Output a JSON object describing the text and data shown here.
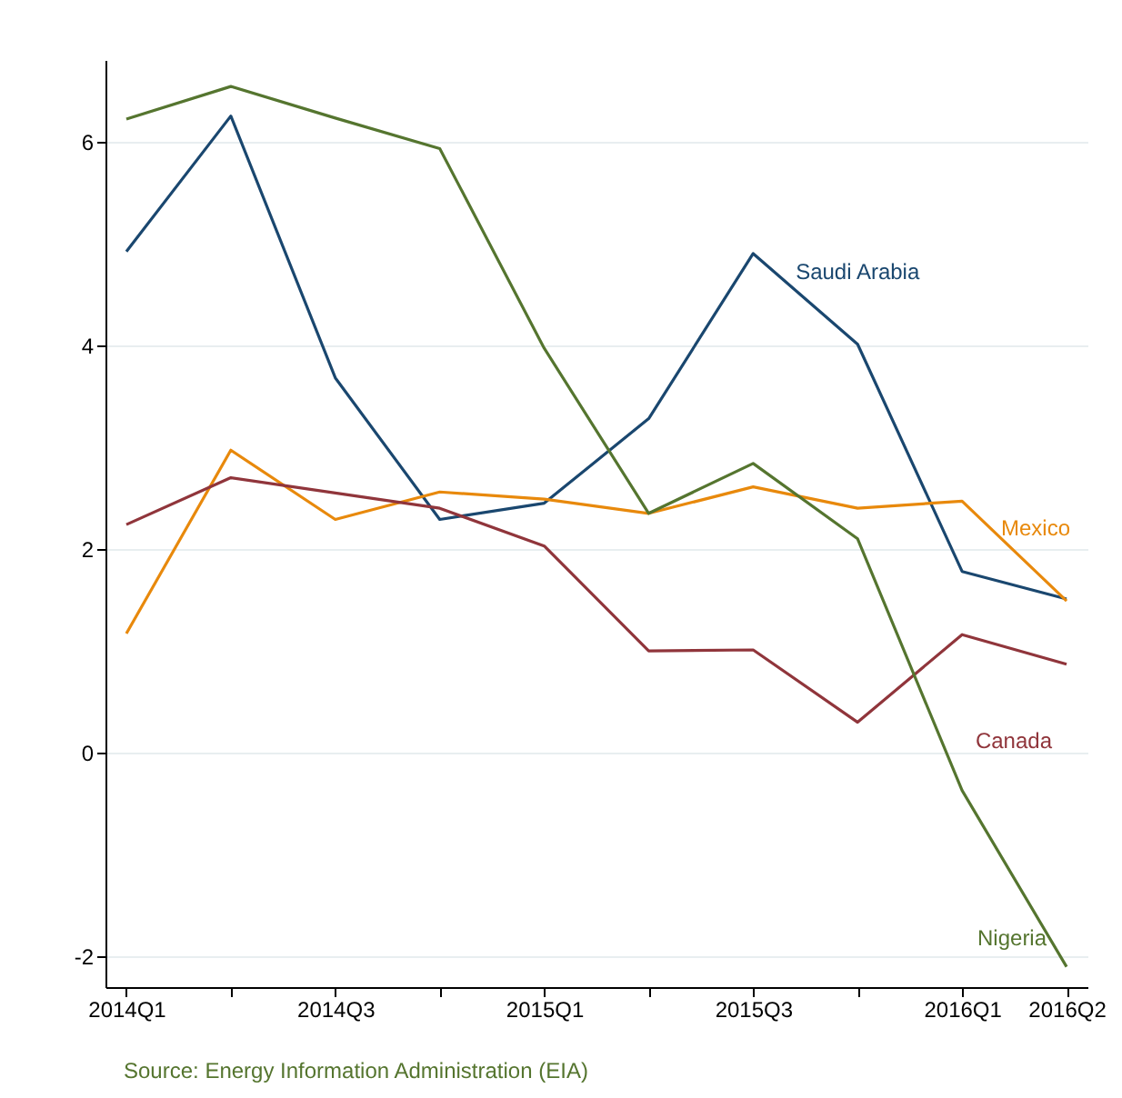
{
  "chart_data": {
    "type": "line",
    "categories": [
      "2014Q1",
      null,
      "2014Q3",
      null,
      "2015Q1",
      null,
      "2015Q3",
      null,
      "2016Q1",
      "2016Q2"
    ],
    "series": [
      {
        "name": "Saudi Arabia",
        "color": "#1a476f",
        "values": [
          4.92,
          6.25,
          3.68,
          2.29,
          2.45,
          3.28,
          4.9,
          4.01,
          1.78,
          1.51
        ]
      },
      {
        "name": "Mexico",
        "color": "#e8890c",
        "values": [
          1.17,
          2.97,
          2.29,
          2.56,
          2.49,
          2.35,
          2.61,
          2.4,
          2.47,
          1.49
        ]
      },
      {
        "name": "Canada",
        "color": "#90353b",
        "values": [
          2.24,
          2.7,
          2.55,
          2.4,
          2.03,
          1.0,
          1.01,
          0.3,
          1.16,
          0.87
        ]
      },
      {
        "name": "Nigeria",
        "color": "#55752f",
        "values": [
          6.22,
          6.54,
          6.23,
          5.93,
          3.97,
          2.35,
          2.84,
          2.1,
          -0.37,
          -2.1
        ]
      }
    ],
    "ylim": [
      -2.3,
      6.8
    ],
    "yticks": [
      -2,
      0,
      2,
      4,
      6
    ],
    "grid": "y",
    "legend": false,
    "marker": "none",
    "line_style": "solid",
    "annotations": [
      "Source: Energy Information Administration (EIA)"
    ]
  }
}
